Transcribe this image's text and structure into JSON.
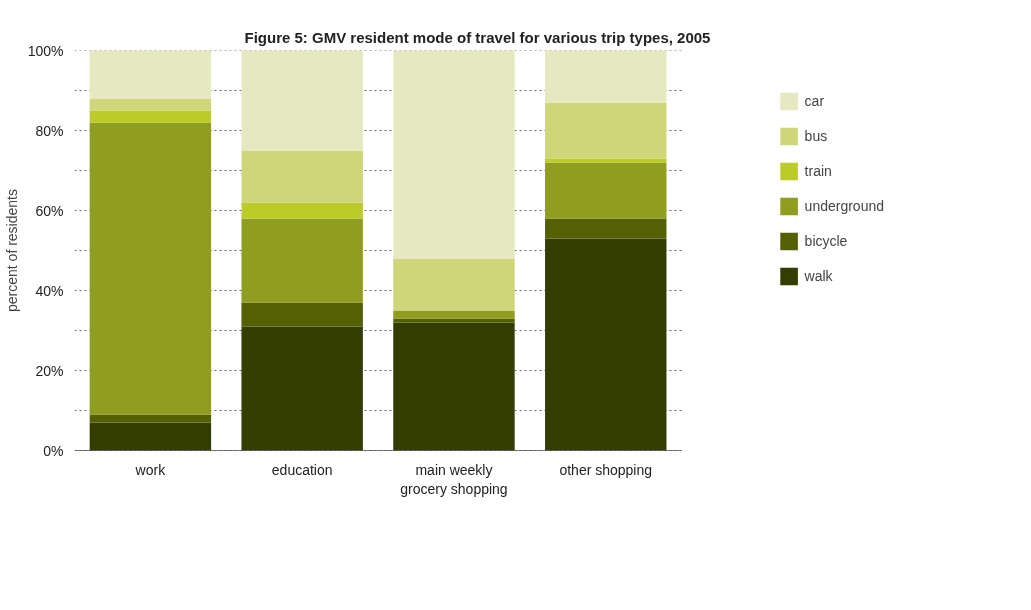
{
  "chart_data": {
    "type": "bar",
    "title": "Figure 5: GMV resident mode of travel for various trip types, 2005",
    "ylabel": "percent of residents",
    "stacked": true,
    "categories": [
      "work",
      "education",
      "main weekly grocery shopping",
      "other shopping"
    ],
    "series": [
      {
        "name": "walk",
        "color": "#333d00",
        "values": [
          7,
          31,
          32,
          53
        ]
      },
      {
        "name": "bicycle",
        "color": "#556005",
        "values": [
          2,
          6,
          1,
          5
        ]
      },
      {
        "name": "underground",
        "color": "#8f9e1f",
        "values": [
          73,
          21,
          2,
          14
        ]
      },
      {
        "name": "train",
        "color": "#bccb2a",
        "values": [
          3,
          4,
          0,
          1
        ]
      },
      {
        "name": "bus",
        "color": "#cfd67a",
        "values": [
          3,
          13,
          13,
          14
        ]
      },
      {
        "name": "car",
        "color": "#e6e9c0",
        "values": [
          12,
          25,
          52,
          13
        ]
      }
    ],
    "ylim": [
      0,
      100
    ],
    "yticks": [
      {
        "value": 0,
        "label": "0%"
      },
      {
        "value": 10,
        "label": null
      },
      {
        "value": 20,
        "label": "20%"
      },
      {
        "value": 30,
        "label": null
      },
      {
        "value": 40,
        "label": "40%"
      },
      {
        "value": 50,
        "label": null
      },
      {
        "value": 60,
        "label": "60%"
      },
      {
        "value": 70,
        "label": null
      },
      {
        "value": 80,
        "label": "80%"
      },
      {
        "value": 90,
        "label": null
      },
      {
        "value": 100,
        "label": "100%"
      }
    ],
    "grid": "y",
    "legend": "right"
  }
}
